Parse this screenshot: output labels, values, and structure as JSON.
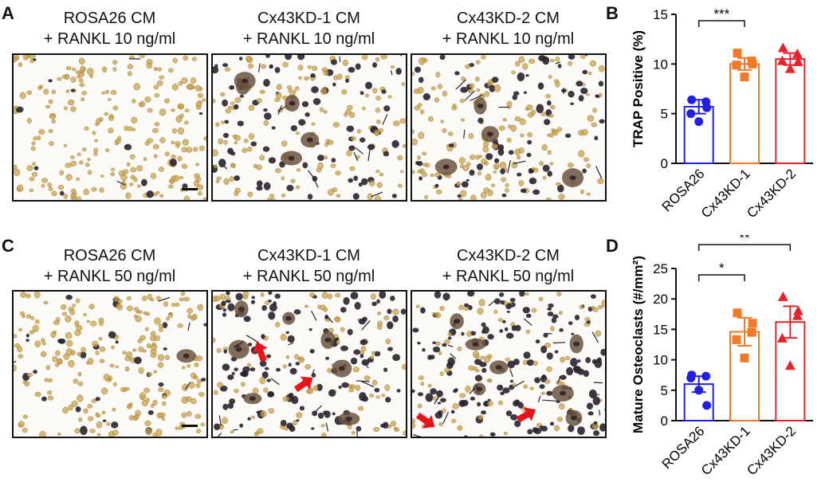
{
  "panels": {
    "A": {
      "letter": "A",
      "images": [
        {
          "caption_line1": "ROSA26 CM",
          "caption_line2": "+ RANKL 10 ng/ml"
        },
        {
          "caption_line1": "Cx43KD-1 CM",
          "caption_line2": "+ RANKL 10 ng/ml"
        },
        {
          "caption_line1": "Cx43KD-2 CM",
          "caption_line2": "+ RANKL 10 ng/ml"
        }
      ]
    },
    "C": {
      "letter": "C",
      "images": [
        {
          "caption_line1": "ROSA26 CM",
          "caption_line2": "+ RANKL 50 ng/ml"
        },
        {
          "caption_line1": "Cx43KD-1 CM",
          "caption_line2": "+ RANKL 50 ng/ml"
        },
        {
          "caption_line1": "Cx43KD-2 CM",
          "caption_line2": "+ RANKL 50 ng/ml"
        }
      ]
    },
    "B": {
      "letter": "B"
    },
    "D": {
      "letter": "D"
    }
  },
  "colors": {
    "rosa26": "#1f1fe6",
    "kd1": "#f07a28",
    "kd2": "#e8222a",
    "arrow": "#e8141c",
    "cell_tan": "#c9a24c",
    "cell_dark": "#2a2230"
  },
  "chart_data": [
    {
      "type": "bar",
      "panel": "B",
      "ylabel": "TRAP Positive (%)",
      "ylim": [
        0,
        15
      ],
      "yticks": [
        0,
        5,
        10,
        15
      ],
      "categories": [
        "ROSA26",
        "Cx43KD-1",
        "Cx43KD-2"
      ],
      "values": [
        5.7,
        10.0,
        10.5
      ],
      "sem": [
        0.7,
        0.6,
        0.6
      ],
      "points": [
        [
          6.4,
          6.2,
          5.0,
          4.2,
          5.6
        ],
        [
          11.1,
          10.3,
          9.9,
          8.7,
          10.0
        ],
        [
          11.6,
          11.0,
          10.3,
          9.5,
          10.2
        ]
      ],
      "markers": [
        "circle",
        "square",
        "triangle"
      ],
      "significance": [
        {
          "from": 0,
          "to": 1,
          "label": "***"
        },
        {
          "from": 0,
          "to": 2,
          "label": "***"
        }
      ]
    },
    {
      "type": "bar",
      "panel": "D",
      "ylabel": "Mature Osteoclasts (#/mm²)",
      "ylim": [
        0,
        25
      ],
      "yticks": [
        0,
        5,
        10,
        15,
        20,
        25
      ],
      "categories": [
        "ROSA26",
        "Cx43KD-1",
        "Cx43KD-2"
      ],
      "values": [
        6.0,
        14.6,
        16.2
      ],
      "sem": [
        1.3,
        2.3,
        2.6
      ],
      "points": [
        [
          7.5,
          7.3,
          7.0,
          5.0,
          2.5
        ],
        [
          17.7,
          14.5,
          13.3,
          10.3,
          16.0
        ],
        [
          20.3,
          17.2,
          13.5,
          9.0,
          18.0
        ]
      ],
      "markers": [
        "circle",
        "square",
        "triangle"
      ],
      "significance": [
        {
          "from": 0,
          "to": 1,
          "label": "*"
        },
        {
          "from": 0,
          "to": 2,
          "label": "**"
        }
      ]
    }
  ]
}
